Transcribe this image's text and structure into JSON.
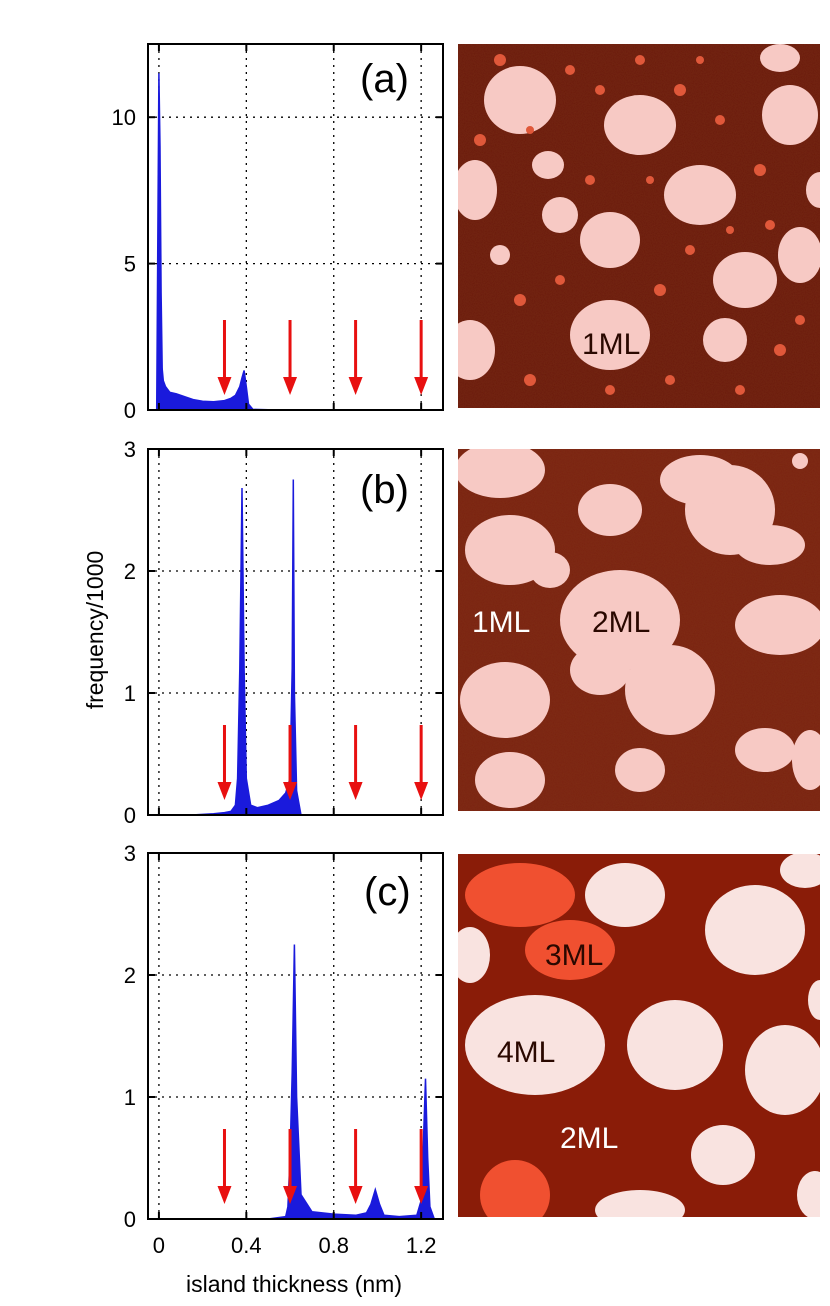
{
  "colors": {
    "histogram": "#1a1adc",
    "arrow": "#e81010",
    "grid": "#000000",
    "axis": "#000000",
    "afm_background_a": "#6a1a0a",
    "afm_background_b": "#7a220e",
    "afm_background_c": "#8a1c08",
    "afm_island": "#f7c9c4",
    "afm_island_mid": "#f05030"
  },
  "chart_data": [
    {
      "type": "area",
      "panel": "(a)",
      "xlabel": "island thickness (nm)",
      "ylabel": "frequency/1000",
      "xlim": [
        -0.05,
        1.3
      ],
      "ylim": [
        0,
        12.5
      ],
      "xticks": [
        0,
        0.4,
        0.8,
        1.2
      ],
      "xtick_labels": [
        "0",
        "0.4",
        "0.8",
        "1.2"
      ],
      "yticks": [
        0,
        5,
        10
      ],
      "ytick_labels": [
        "0",
        "5",
        "10"
      ],
      "grid": true,
      "x": [
        -0.01,
        0.0,
        0.005,
        0.01,
        0.015,
        0.02,
        0.03,
        0.05,
        0.08,
        0.12,
        0.16,
        0.2,
        0.25,
        0.3,
        0.33,
        0.35,
        0.37,
        0.38,
        0.39,
        0.4,
        0.41,
        0.43,
        0.5,
        0.6
      ],
      "values": [
        0.0,
        11.5,
        9.0,
        4.0,
        1.4,
        1.0,
        0.8,
        0.6,
        0.55,
        0.45,
        0.35,
        0.3,
        0.28,
        0.32,
        0.4,
        0.5,
        0.8,
        1.1,
        1.35,
        0.8,
        0.2,
        0.02,
        0.01,
        0.0
      ],
      "arrows_x": [
        0.3,
        0.6,
        0.9,
        1.2
      ],
      "image_labels": [
        {
          "text": "1ML",
          "color": "#2a0800"
        }
      ]
    },
    {
      "type": "area",
      "panel": "(b)",
      "xlim": [
        -0.05,
        1.3
      ],
      "ylim": [
        0,
        3
      ],
      "xticks": [
        0,
        0.4,
        0.8,
        1.2
      ],
      "yticks": [
        0,
        1,
        2,
        3
      ],
      "ytick_labels": [
        "0",
        "1",
        "2",
        "3"
      ],
      "grid": true,
      "x": [
        0.15,
        0.25,
        0.3,
        0.33,
        0.35,
        0.36,
        0.37,
        0.38,
        0.39,
        0.4,
        0.42,
        0.45,
        0.5,
        0.55,
        0.58,
        0.6,
        0.61,
        0.615,
        0.62,
        0.63,
        0.65
      ],
      "values": [
        0.0,
        0.01,
        0.02,
        0.03,
        0.08,
        0.3,
        1.2,
        2.68,
        1.2,
        0.3,
        0.08,
        0.06,
        0.08,
        0.12,
        0.18,
        0.3,
        1.2,
        2.75,
        1.0,
        0.2,
        0.0
      ],
      "arrows_x": [
        0.3,
        0.6,
        0.9,
        1.2
      ],
      "image_labels": [
        {
          "text": "1ML",
          "color": "#ffffff"
        },
        {
          "text": "2ML",
          "color": "#2a0800"
        }
      ]
    },
    {
      "type": "area",
      "panel": "(c)",
      "xlim": [
        -0.05,
        1.3
      ],
      "ylim": [
        0,
        3
      ],
      "xticks": [
        0,
        0.4,
        0.8,
        1.2
      ],
      "yticks": [
        0,
        1,
        2,
        3
      ],
      "ytick_labels": [
        "0",
        "1",
        "2",
        "3"
      ],
      "grid": true,
      "x": [
        0.5,
        0.58,
        0.59,
        0.6,
        0.61,
        0.62,
        0.63,
        0.65,
        0.7,
        0.8,
        0.9,
        0.95,
        0.97,
        0.99,
        1.01,
        1.03,
        1.1,
        1.18,
        1.2,
        1.21,
        1.22,
        1.23,
        1.24,
        1.26
      ],
      "values": [
        0.0,
        0.02,
        0.1,
        0.5,
        1.2,
        2.25,
        1.0,
        0.2,
        0.06,
        0.04,
        0.03,
        0.05,
        0.12,
        0.24,
        0.12,
        0.03,
        0.02,
        0.03,
        0.15,
        0.6,
        1.15,
        0.5,
        0.1,
        0.0
      ],
      "arrows_x": [
        0.3,
        0.6,
        0.9,
        1.2
      ],
      "image_labels": [
        {
          "text": "3ML",
          "color": "#2a0800"
        },
        {
          "text": "4ML",
          "color": "#2a0800"
        },
        {
          "text": "2ML",
          "color": "#ffffff"
        }
      ]
    }
  ]
}
